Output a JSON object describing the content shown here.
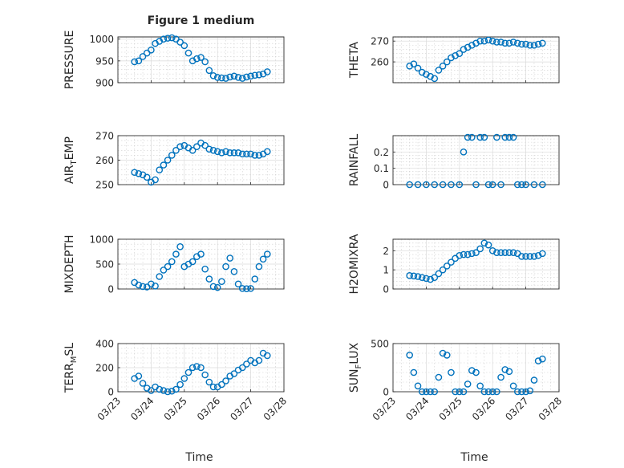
{
  "chart_data": [
    {
      "type": "scatter",
      "title": "Figure 1 medium",
      "ylabel": "PRESSURE",
      "ylabel_sub": "",
      "ylabel_tail": "",
      "ylim": [
        900,
        1005
      ],
      "yticks": [
        900,
        950,
        1000
      ],
      "yticklabels": [
        "900",
        "950",
        "1000"
      ],
      "marker": "o",
      "color": "#0072BD",
      "series": [
        {
          "x": [
            "03/23 12:00",
            "03/23 15:00",
            "03/23 18:00",
            "03/23 21:00",
            "03/24 00:00",
            "03/24 03:00",
            "03/24 06:00",
            "03/24 09:00",
            "03/24 12:00",
            "03/24 15:00",
            "03/24 18:00",
            "03/24 21:00",
            "03/25 00:00",
            "03/25 03:00",
            "03/25 06:00",
            "03/25 09:00",
            "03/25 12:00",
            "03/25 15:00",
            "03/25 18:00",
            "03/25 21:00",
            "03/26 00:00",
            "03/26 03:00",
            "03/26 06:00",
            "03/26 09:00",
            "03/26 12:00",
            "03/26 15:00",
            "03/26 18:00",
            "03/26 21:00",
            "03/27 00:00",
            "03/27 03:00",
            "03/27 06:00",
            "03/27 09:00",
            "03/27 12:00"
          ],
          "y": [
            948,
            950,
            960,
            968,
            975,
            990,
            995,
            1000,
            1002,
            1003,
            1000,
            993,
            985,
            968,
            950,
            955,
            958,
            948,
            928,
            916,
            912,
            911,
            910,
            913,
            915,
            912,
            910,
            913,
            915,
            917,
            918,
            920,
            925
          ]
        }
      ]
    },
    {
      "type": "scatter",
      "title": "",
      "ylabel": "THETA",
      "ylabel_sub": "",
      "ylabel_tail": "",
      "ylim": [
        250,
        272
      ],
      "yticks": [
        260,
        270
      ],
      "yticklabels": [
        "260",
        "270"
      ],
      "marker": "o",
      "color": "#0072BD",
      "series": [
        {
          "x": [
            "03/23 12:00",
            "03/23 15:00",
            "03/23 18:00",
            "03/23 21:00",
            "03/24 00:00",
            "03/24 03:00",
            "03/24 06:00",
            "03/24 09:00",
            "03/24 12:00",
            "03/24 15:00",
            "03/24 18:00",
            "03/24 21:00",
            "03/25 00:00",
            "03/25 03:00",
            "03/25 06:00",
            "03/25 09:00",
            "03/25 12:00",
            "03/25 15:00",
            "03/25 18:00",
            "03/25 21:00",
            "03/26 00:00",
            "03/26 03:00",
            "03/26 06:00",
            "03/26 09:00",
            "03/26 12:00",
            "03/26 15:00",
            "03/26 18:00",
            "03/26 21:00",
            "03/27 00:00",
            "03/27 03:00",
            "03/27 06:00",
            "03/27 09:00",
            "03/27 12:00"
          ],
          "y": [
            258,
            259,
            257,
            255,
            254,
            253,
            252,
            256,
            258,
            260,
            262,
            263,
            264,
            266,
            267,
            268,
            269,
            270,
            270,
            270.5,
            270,
            269.5,
            269.5,
            269,
            269,
            269.5,
            269,
            268.5,
            268.5,
            268,
            268,
            268.5,
            269
          ]
        }
      ]
    },
    {
      "type": "scatter",
      "title": "",
      "ylabel": "AIR",
      "ylabel_sub": "T",
      "ylabel_tail": "EMP",
      "ylim": [
        250,
        270
      ],
      "yticks": [
        250,
        260,
        270
      ],
      "yticklabels": [
        "250",
        "260",
        "270"
      ],
      "marker": "o",
      "color": "#0072BD",
      "series": [
        {
          "x": [
            "03/23 12:00",
            "03/23 15:00",
            "03/23 18:00",
            "03/23 21:00",
            "03/24 00:00",
            "03/24 03:00",
            "03/24 06:00",
            "03/24 09:00",
            "03/24 12:00",
            "03/24 15:00",
            "03/24 18:00",
            "03/24 21:00",
            "03/25 00:00",
            "03/25 03:00",
            "03/25 06:00",
            "03/25 09:00",
            "03/25 12:00",
            "03/25 15:00",
            "03/25 18:00",
            "03/25 21:00",
            "03/26 00:00",
            "03/26 03:00",
            "03/26 06:00",
            "03/26 09:00",
            "03/26 12:00",
            "03/26 15:00",
            "03/26 18:00",
            "03/26 21:00",
            "03/27 00:00",
            "03/27 03:00",
            "03/27 06:00",
            "03/27 09:00",
            "03/27 12:00"
          ],
          "y": [
            255,
            254.5,
            254,
            253,
            251,
            252,
            256,
            258,
            260,
            262,
            264,
            265.5,
            266,
            265,
            264,
            265.5,
            267,
            266,
            264.5,
            264,
            263.5,
            263,
            263.5,
            263,
            263,
            263,
            262.5,
            262.5,
            262.5,
            262,
            262,
            262.5,
            263.5
          ]
        }
      ]
    },
    {
      "type": "scatter",
      "title": "",
      "ylabel": "RAINFALL",
      "ylabel_sub": "",
      "ylabel_tail": "",
      "ylim": [
        0,
        0.3
      ],
      "yticks": [
        0,
        0.1,
        0.2
      ],
      "yticklabels": [
        "0",
        "0.1",
        "0.2"
      ],
      "marker": "o",
      "color": "#0072BD",
      "series": [
        {
          "x": [
            "03/23 12:00",
            "03/23 18:00",
            "03/24 00:00",
            "03/24 06:00",
            "03/24 12:00",
            "03/24 18:00",
            "03/25 00:00",
            "03/25 03:00",
            "03/25 06:00",
            "03/25 09:00",
            "03/25 12:00",
            "03/25 15:00",
            "03/25 18:00",
            "03/25 21:00",
            "03/26 00:00",
            "03/26 03:00",
            "03/26 06:00",
            "03/26 09:00",
            "03/26 12:00",
            "03/26 15:00",
            "03/26 18:00",
            "03/26 21:00",
            "03/27 00:00",
            "03/27 06:00",
            "03/27 12:00"
          ],
          "y": [
            0,
            0,
            0,
            0,
            0,
            0,
            0,
            0.2,
            0.29,
            0.29,
            0,
            0.29,
            0.29,
            0,
            0,
            0.29,
            0,
            0.29,
            0.29,
            0.29,
            0,
            0,
            0,
            0,
            0
          ]
        }
      ]
    },
    {
      "type": "scatter",
      "title": "",
      "ylabel": "MIXDEPTH",
      "ylabel_sub": "",
      "ylabel_tail": "",
      "ylim": [
        0,
        1000
      ],
      "yticks": [
        0,
        500,
        1000
      ],
      "yticklabels": [
        "0",
        "500",
        "1000"
      ],
      "marker": "o",
      "color": "#0072BD",
      "series": [
        {
          "x": [
            "03/23 12:00",
            "03/23 15:00",
            "03/23 18:00",
            "03/23 21:00",
            "03/24 00:00",
            "03/24 03:00",
            "03/24 06:00",
            "03/24 09:00",
            "03/24 12:00",
            "03/24 15:00",
            "03/24 18:00",
            "03/24 21:00",
            "03/25 00:00",
            "03/25 03:00",
            "03/25 06:00",
            "03/25 09:00",
            "03/25 12:00",
            "03/25 15:00",
            "03/25 18:00",
            "03/25 21:00",
            "03/26 00:00",
            "03/26 03:00",
            "03/26 06:00",
            "03/26 09:00",
            "03/26 12:00",
            "03/26 15:00",
            "03/26 18:00",
            "03/26 21:00",
            "03/27 00:00",
            "03/27 03:00",
            "03/27 06:00",
            "03/27 09:00",
            "03/27 12:00"
          ],
          "y": [
            130,
            80,
            50,
            40,
            100,
            60,
            250,
            380,
            450,
            550,
            700,
            850,
            450,
            500,
            550,
            650,
            700,
            400,
            200,
            50,
            30,
            150,
            450,
            620,
            350,
            100,
            10,
            5,
            10,
            200,
            450,
            600,
            700
          ]
        }
      ]
    },
    {
      "type": "scatter",
      "title": "",
      "ylabel": "H2OMIXRA",
      "ylabel_sub": "",
      "ylabel_tail": "",
      "ylim": [
        0,
        2.6
      ],
      "yticks": [
        0,
        1,
        2
      ],
      "yticklabels": [
        "0",
        "1",
        "2"
      ],
      "marker": "o",
      "color": "#0072BD",
      "series": [
        {
          "x": [
            "03/23 12:00",
            "03/23 15:00",
            "03/23 18:00",
            "03/23 21:00",
            "03/24 00:00",
            "03/24 03:00",
            "03/24 06:00",
            "03/24 09:00",
            "03/24 12:00",
            "03/24 15:00",
            "03/24 18:00",
            "03/24 21:00",
            "03/25 00:00",
            "03/25 03:00",
            "03/25 06:00",
            "03/25 09:00",
            "03/25 12:00",
            "03/25 15:00",
            "03/25 18:00",
            "03/25 21:00",
            "03/26 00:00",
            "03/26 03:00",
            "03/26 06:00",
            "03/26 09:00",
            "03/26 12:00",
            "03/26 15:00",
            "03/26 18:00",
            "03/26 21:00",
            "03/27 00:00",
            "03/27 03:00",
            "03/27 06:00",
            "03/27 09:00",
            "03/27 12:00"
          ],
          "y": [
            0.7,
            0.68,
            0.65,
            0.6,
            0.55,
            0.5,
            0.6,
            0.8,
            1.0,
            1.2,
            1.4,
            1.6,
            1.75,
            1.8,
            1.8,
            1.85,
            1.9,
            2.1,
            2.4,
            2.3,
            2.0,
            1.9,
            1.9,
            1.9,
            1.9,
            1.9,
            1.85,
            1.7,
            1.7,
            1.7,
            1.7,
            1.75,
            1.85
          ]
        }
      ]
    },
    {
      "type": "scatter",
      "title": "",
      "ylabel": "TERR",
      "ylabel_sub": "M",
      "ylabel_tail": "SL",
      "ylim": [
        0,
        400
      ],
      "yticks": [
        0,
        200,
        400
      ],
      "yticklabels": [
        "0",
        "200",
        "400"
      ],
      "xlabel": "Time",
      "marker": "o",
      "color": "#0072BD",
      "series": [
        {
          "x": [
            "03/23 12:00",
            "03/23 15:00",
            "03/23 18:00",
            "03/23 21:00",
            "03/24 00:00",
            "03/24 03:00",
            "03/24 06:00",
            "03/24 09:00",
            "03/24 12:00",
            "03/24 15:00",
            "03/24 18:00",
            "03/24 21:00",
            "03/25 00:00",
            "03/25 03:00",
            "03/25 06:00",
            "03/25 09:00",
            "03/25 12:00",
            "03/25 15:00",
            "03/25 18:00",
            "03/25 21:00",
            "03/26 00:00",
            "03/26 03:00",
            "03/26 06:00",
            "03/26 09:00",
            "03/26 12:00",
            "03/26 15:00",
            "03/26 18:00",
            "03/26 21:00",
            "03/27 00:00",
            "03/27 03:00",
            "03/27 06:00",
            "03/27 09:00",
            "03/27 12:00"
          ],
          "y": [
            110,
            130,
            70,
            30,
            10,
            40,
            20,
            10,
            0,
            5,
            20,
            60,
            110,
            160,
            200,
            210,
            200,
            140,
            80,
            40,
            40,
            60,
            90,
            130,
            150,
            180,
            200,
            230,
            260,
            240,
            260,
            320,
            300
          ]
        }
      ]
    },
    {
      "type": "scatter",
      "title": "",
      "ylabel": "SUN",
      "ylabel_sub": "F",
      "ylabel_tail": "LUX",
      "ylim": [
        0,
        500
      ],
      "yticks": [
        0,
        500
      ],
      "yticklabels": [
        "0",
        "500"
      ],
      "xlabel": "Time",
      "marker": "o",
      "color": "#0072BD",
      "series": [
        {
          "x": [
            "03/23 12:00",
            "03/23 15:00",
            "03/23 18:00",
            "03/23 21:00",
            "03/24 00:00",
            "03/24 03:00",
            "03/24 06:00",
            "03/24 09:00",
            "03/24 12:00",
            "03/24 15:00",
            "03/24 18:00",
            "03/24 21:00",
            "03/25 00:00",
            "03/25 03:00",
            "03/25 06:00",
            "03/25 09:00",
            "03/25 12:00",
            "03/25 15:00",
            "03/25 18:00",
            "03/25 21:00",
            "03/26 00:00",
            "03/26 03:00",
            "03/26 06:00",
            "03/26 09:00",
            "03/26 12:00",
            "03/26 15:00",
            "03/26 18:00",
            "03/26 21:00",
            "03/27 00:00",
            "03/27 03:00",
            "03/27 06:00",
            "03/27 09:00",
            "03/27 12:00"
          ],
          "y": [
            380,
            200,
            60,
            0,
            0,
            0,
            0,
            150,
            400,
            380,
            200,
            0,
            0,
            0,
            80,
            220,
            200,
            60,
            0,
            0,
            0,
            0,
            150,
            230,
            210,
            60,
            0,
            0,
            0,
            10,
            120,
            320,
            340
          ]
        }
      ]
    }
  ],
  "xaxis": {
    "xlim": [
      "03/23 00:00",
      "03/28 00:00"
    ],
    "ticklabels": [
      "03/23",
      "03/24",
      "03/25",
      "03/26",
      "03/27",
      "03/28"
    ],
    "xlabel": "Time",
    "grid": "major+minor dotted"
  }
}
